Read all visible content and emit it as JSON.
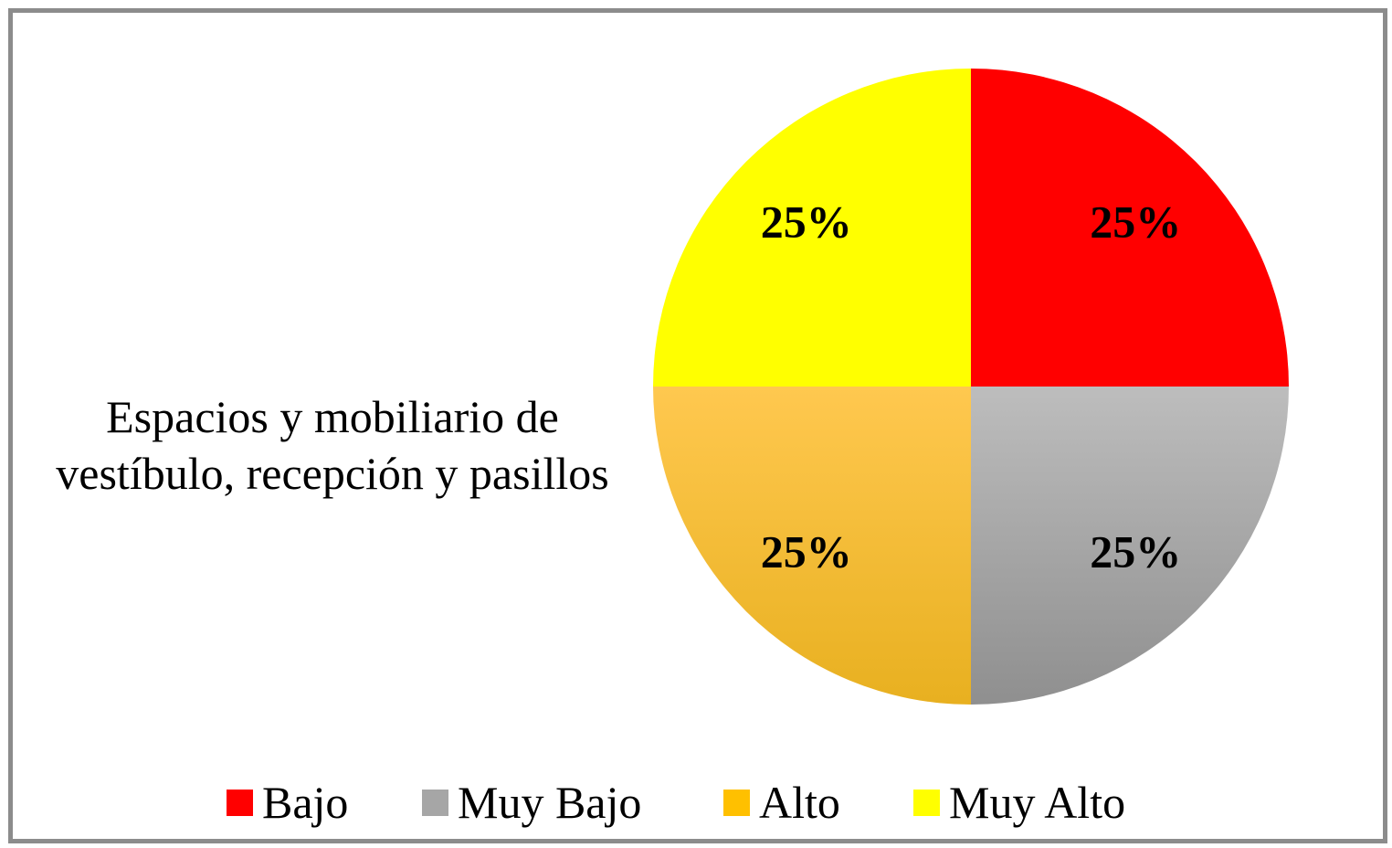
{
  "chart_data": {
    "type": "pie",
    "title_lines": [
      "Espacios y mobiliario de",
      "vestíbulo, recepción y pasillos"
    ],
    "categories": [
      "Bajo",
      "Muy Bajo",
      "Alto",
      "Muy Alto"
    ],
    "values": [
      25,
      25,
      25,
      25
    ],
    "data_labels": [
      "25%",
      "25%",
      "25%",
      "25%"
    ],
    "colors": [
      "#ff0000",
      "#a6a6a6",
      "#ffc000",
      "#ffff00"
    ],
    "start_angle": "12 o'clock",
    "direction": "clockwise",
    "legend_position": "bottom"
  }
}
